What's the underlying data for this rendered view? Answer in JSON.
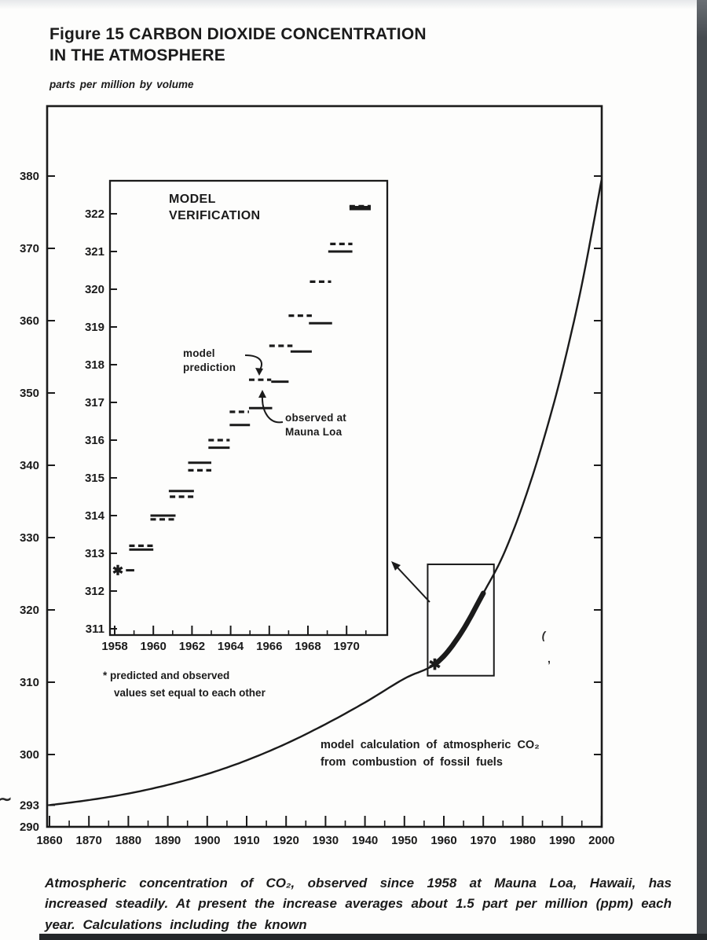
{
  "page": {
    "title_line1": "Figure 15 CARBON DIOXIDE CONCENTRATION",
    "title_line2": "IN THE ATMOSPHERE",
    "units_label": "parts per million by volume",
    "caption": "Atmospheric concentration of CO₂, observed since 1958 at Mauna Loa, Hawaii, has increased steadily. At present the increase averages about 1.5 part per million (ppm) each year. Calculations including the known",
    "artifact_squiggle": "∼",
    "artifact_paren": "(",
    "artifact_comma": ","
  },
  "chart_data": {
    "type": "line",
    "title": "Figure 15 CARBON DIOXIDE CONCENTRATION IN THE ATMOSPHERE",
    "ylabel": "parts per million by volume",
    "ink_color": "#1b1b1b",
    "main": {
      "xlim": [
        1859.4,
        2000.6
      ],
      "ylim": [
        290,
        389.6
      ],
      "x_ticks": [
        1860,
        1870,
        1880,
        1890,
        1900,
        1910,
        1920,
        1930,
        1940,
        1950,
        1960,
        1970,
        1980,
        1990,
        2000
      ],
      "x_minor_ticks": [
        1865,
        1875,
        1885,
        1895,
        1905,
        1915,
        1925,
        1935,
        1945,
        1955,
        1965,
        1975,
        1985,
        1995
      ],
      "y_tick_labels": [
        290,
        293,
        300,
        310,
        320,
        330,
        340,
        350,
        360,
        370,
        380
      ],
      "y_right_ticks": [
        300,
        310,
        320,
        330,
        340,
        350,
        360,
        370,
        380
      ],
      "grid": false,
      "curve_name": "model calculation of atmospheric CO2 from combustion of fossil fuels",
      "curve_label_line1": "model calculation of atmospheric CO₂",
      "curve_label_line2": "from combustion of fossil fuels",
      "curve": [
        [
          1860,
          293
        ],
        [
          1870,
          293.7
        ],
        [
          1880,
          294.6
        ],
        [
          1890,
          295.8
        ],
        [
          1900,
          297.3
        ],
        [
          1910,
          299.2
        ],
        [
          1920,
          301.5
        ],
        [
          1930,
          304.2
        ],
        [
          1940,
          307.2
        ],
        [
          1950,
          310.5
        ],
        [
          1958,
          312.6
        ],
        [
          1964,
          316.5
        ],
        [
          1970,
          322.3
        ],
        [
          1975,
          327.5
        ],
        [
          1980,
          334.5
        ],
        [
          1985,
          343
        ],
        [
          1990,
          353
        ],
        [
          1995,
          365
        ],
        [
          2000,
          379.5
        ]
      ],
      "observed_overlay": {
        "name": "Mauna Loa observed (thick segment)",
        "x_start": 1957.8,
        "x_end": 1970.05
      },
      "asterisk": {
        "year": 1957.7,
        "ppm": 312.5
      },
      "zoom_rect": {
        "x1": 1955.9,
        "x2": 1972.7,
        "y1": 310.9,
        "y2": 326.3
      }
    },
    "inset": {
      "title_line1": "MODEL",
      "title_line2": "VERIFICATION",
      "xlim": [
        1957.75,
        1972.1
      ],
      "ylim": [
        311,
        322.875
      ],
      "x_ticks": [
        1958,
        1960,
        1962,
        1964,
        1966,
        1968,
        1970
      ],
      "x_minor_ticks": [
        1959,
        1961,
        1963,
        1965,
        1967,
        1969,
        1971
      ],
      "y_ticks": [
        311,
        312,
        313,
        314,
        315,
        316,
        317,
        318,
        319,
        320,
        321,
        322
      ],
      "grid": false,
      "prediction_label_line1": "model",
      "prediction_label_line2": "prediction",
      "observed_label_line1": "observed at",
      "observed_label_line2": "Mauna Loa",
      "footnote_line1": "* predicted and observed",
      "footnote_line2": "values set equal to each other",
      "asterisk": {
        "ppm": 312.55,
        "year": 1958.2,
        "dash_span": [
          1958.5,
          1958.85
        ]
      },
      "years": [
        {
          "year": 1959,
          "predicted": 313.2,
          "observed": 313.1,
          "pred_span": [
            1958.75,
            1960.0
          ],
          "obs_span": [
            1958.75,
            1960.0
          ]
        },
        {
          "year": 1960,
          "predicted": 313.9,
          "observed": 314.0,
          "pred_span": [
            1959.85,
            1961.1
          ],
          "obs_span": [
            1959.85,
            1961.15
          ]
        },
        {
          "year": 1961,
          "predicted": 314.5,
          "observed": 314.65,
          "pred_span": [
            1960.85,
            1962.1
          ],
          "obs_span": [
            1960.8,
            1962.1
          ]
        },
        {
          "year": 1962,
          "predicted": 315.2,
          "observed": 315.4,
          "pred_span": [
            1961.8,
            1963.0
          ],
          "obs_span": [
            1961.8,
            1963.0
          ]
        },
        {
          "year": 1963,
          "predicted": 316.0,
          "observed": 315.8,
          "pred_span": [
            1962.85,
            1963.95
          ],
          "obs_span": [
            1962.85,
            1963.95
          ]
        },
        {
          "year": 1964,
          "predicted": 316.75,
          "observed": 316.4,
          "pred_span": [
            1963.95,
            1964.95
          ],
          "obs_span": [
            1963.95,
            1965.0
          ]
        },
        {
          "year": 1965,
          "predicted": 317.6,
          "observed": 316.85,
          "pred_span": [
            1964.95,
            1966.1
          ],
          "obs_span": [
            1964.95,
            1966.15
          ]
        },
        {
          "year": 1966,
          "predicted": 318.5,
          "observed": 317.55,
          "pred_span": [
            1966.0,
            1967.2
          ],
          "obs_span": [
            1966.1,
            1967.0
          ]
        },
        {
          "year": 1967,
          "predicted": 319.3,
          "observed": 318.35,
          "pred_span": [
            1967.0,
            1968.2
          ],
          "obs_span": [
            1967.1,
            1968.2
          ]
        },
        {
          "year": 1968,
          "predicted": 320.2,
          "observed": 319.1,
          "pred_span": [
            1968.1,
            1969.2
          ],
          "obs_span": [
            1968.05,
            1969.25
          ]
        },
        {
          "year": 1969,
          "predicted": 321.2,
          "observed": 321.0,
          "pred_span": [
            1969.15,
            1970.3
          ],
          "obs_span": [
            1969.05,
            1970.3
          ]
        },
        {
          "year": 1970,
          "predicted": 322.2,
          "observed": 322.15,
          "pred_span": [
            1970.15,
            1971.25
          ],
          "obs_span": [
            1970.15,
            1971.25
          ],
          "merged": true
        }
      ]
    }
  }
}
